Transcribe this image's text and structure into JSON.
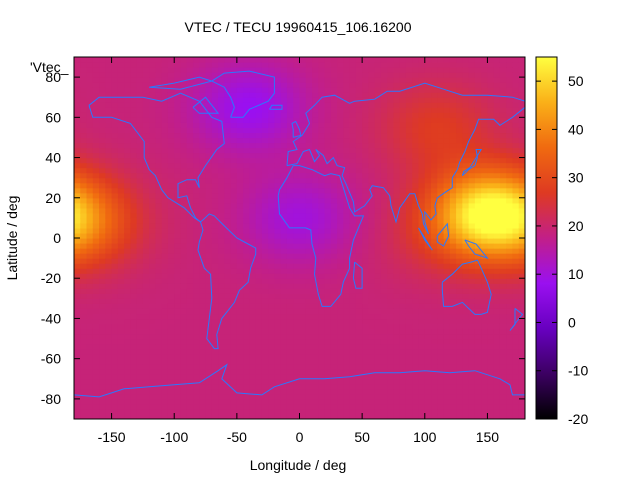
{
  "chart_data": {
    "type": "heatmap",
    "title": "VTEC / TECU 19960415_106.16200",
    "xlabel": "Longitude / deg",
    "ylabel": "Latitude / deg",
    "series_label": "'Vtec_",
    "xlim": [
      -180,
      180
    ],
    "ylim": [
      -90,
      90
    ],
    "xticks": [
      -150,
      -100,
      -50,
      0,
      50,
      100,
      150
    ],
    "yticks": [
      -80,
      -60,
      -40,
      -20,
      0,
      20,
      40,
      60,
      80
    ],
    "colorbar": {
      "range": [
        -20,
        55
      ],
      "ticks": [
        -20,
        -10,
        0,
        10,
        20,
        30,
        40,
        50
      ],
      "palette": [
        "#000000",
        "#3c0062",
        "#6800c0",
        "#9a10f0",
        "#c21f88",
        "#de3a22",
        "#f06a10",
        "#fab018",
        "#ffff40"
      ]
    },
    "coastline_color": "#2a78ff",
    "field": {
      "description_units": "TECU",
      "background": 19,
      "blobs": [
        {
          "lon": 150,
          "lat": 12,
          "value": 54
        },
        {
          "lon": 110,
          "lat": 55,
          "value": 27
        },
        {
          "lon": -170,
          "lat": 8,
          "value": 31
        },
        {
          "lon": 100,
          "lat": 0,
          "value": 22
        },
        {
          "lon": -40,
          "lat": 65,
          "value": 8
        },
        {
          "lon": 0,
          "lat": 10,
          "value": 10
        }
      ]
    }
  }
}
